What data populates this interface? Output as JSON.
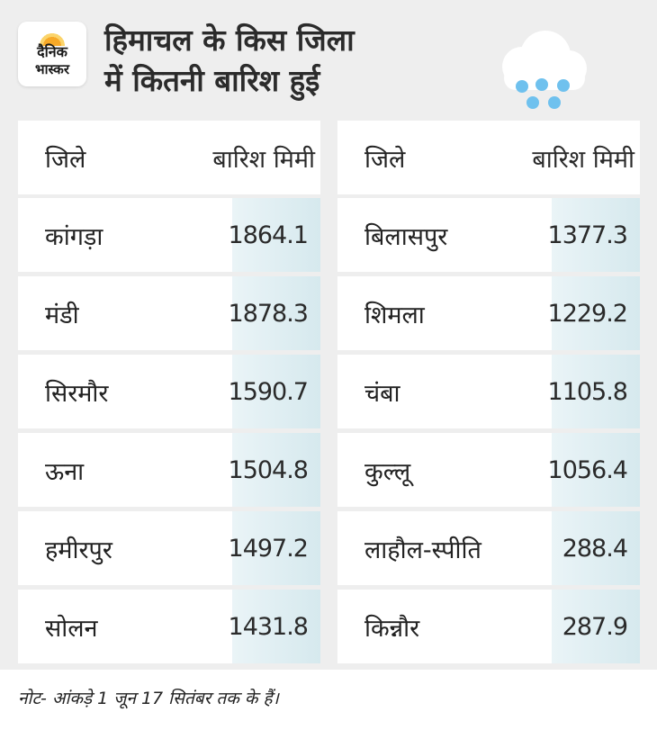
{
  "logo": {
    "line1": "दैनिक",
    "line2": "भास्कर"
  },
  "title": {
    "line1": "हिमाचल के किस जिला",
    "line2": "में कितनी बारिश हुई"
  },
  "weather_icon": "rain-cloud-icon",
  "colors": {
    "panel_bg": "#eeeeee",
    "value_cell": "#d6e9ee",
    "raindrop": "#6fc1ee",
    "logo_sun": "#f7a928"
  },
  "table_left": {
    "header": {
      "district": "जिले",
      "rain": "बारिश मिमी"
    },
    "rows": [
      {
        "district": "कांगड़ा",
        "rain": "1864.1"
      },
      {
        "district": "मंडी",
        "rain": "1878.3"
      },
      {
        "district": "सिरमौर",
        "rain": "1590.7"
      },
      {
        "district": "ऊना",
        "rain": "1504.8"
      },
      {
        "district": "हमीरपुर",
        "rain": "1497.2"
      },
      {
        "district": "सोलन",
        "rain": "1431.8"
      }
    ]
  },
  "table_right": {
    "header": {
      "district": "जिले",
      "rain": "बारिश मिमी"
    },
    "rows": [
      {
        "district": "बिलासपुर",
        "rain": "1377.3"
      },
      {
        "district": "शिमला",
        "rain": "1229.2"
      },
      {
        "district": "चंबा",
        "rain": "1105.8"
      },
      {
        "district": "कुल्लू",
        "rain": "1056.4"
      },
      {
        "district": "लाहौल-स्पीति",
        "rain": "288.4"
      },
      {
        "district": "किन्नौर",
        "rain": "287.9"
      }
    ]
  },
  "note": "नोट- आंकड़े 1 जून 17 सितंबर तक के हैं।"
}
